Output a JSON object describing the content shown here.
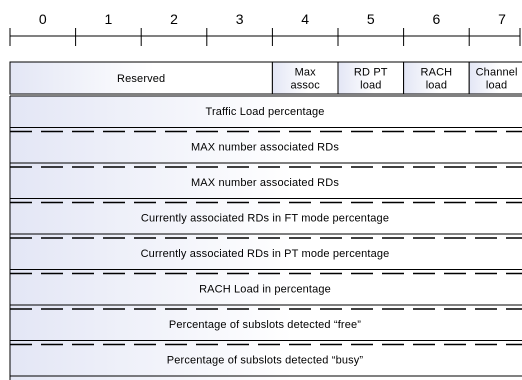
{
  "bit_numbers": [
    "0",
    "1",
    "2",
    "3",
    "4",
    "5",
    "6",
    "7"
  ],
  "header_fields": [
    {
      "name": "reserved",
      "lines": [
        "Reserved"
      ],
      "bits": 4
    },
    {
      "name": "max-assoc",
      "lines": [
        "Max",
        "assoc"
      ],
      "bits": 1
    },
    {
      "name": "rd-pt-load",
      "lines": [
        "RD PT",
        "load"
      ],
      "bits": 1
    },
    {
      "name": "rach-load",
      "lines": [
        "RACH",
        "load"
      ],
      "bits": 1
    },
    {
      "name": "channel-load",
      "lines": [
        "Channel",
        "load"
      ],
      "bits": 1
    }
  ],
  "rows": [
    {
      "name": "traffic-load-percentage",
      "label": "Traffic Load percentage",
      "continued": false
    },
    {
      "name": "max-number-associated-rds-1",
      "label": "MAX number associated RDs",
      "continued": false
    },
    {
      "name": "max-number-associated-rds-2",
      "label": "MAX number associated RDs",
      "continued": true
    },
    {
      "name": "currently-associated-rds-ft",
      "label": "Currently associated RDs in FT mode percentage",
      "continued": false
    },
    {
      "name": "currently-associated-rds-pt",
      "label": "Currently associated RDs in PT mode percentage",
      "continued": false
    },
    {
      "name": "rach-load-in-percentage",
      "label": "RACH Load in percentage",
      "continued": false
    },
    {
      "name": "percentage-subslots-free",
      "label": "Percentage of subslots detected “free”",
      "continued": false
    },
    {
      "name": "percentage-subslots-busy",
      "label": "Percentage of subslots detected “busy”",
      "continued": false
    }
  ],
  "colors": {
    "gradient_start": "#e3e6f5",
    "gradient_end": "#ffffff",
    "line": "#000000"
  }
}
